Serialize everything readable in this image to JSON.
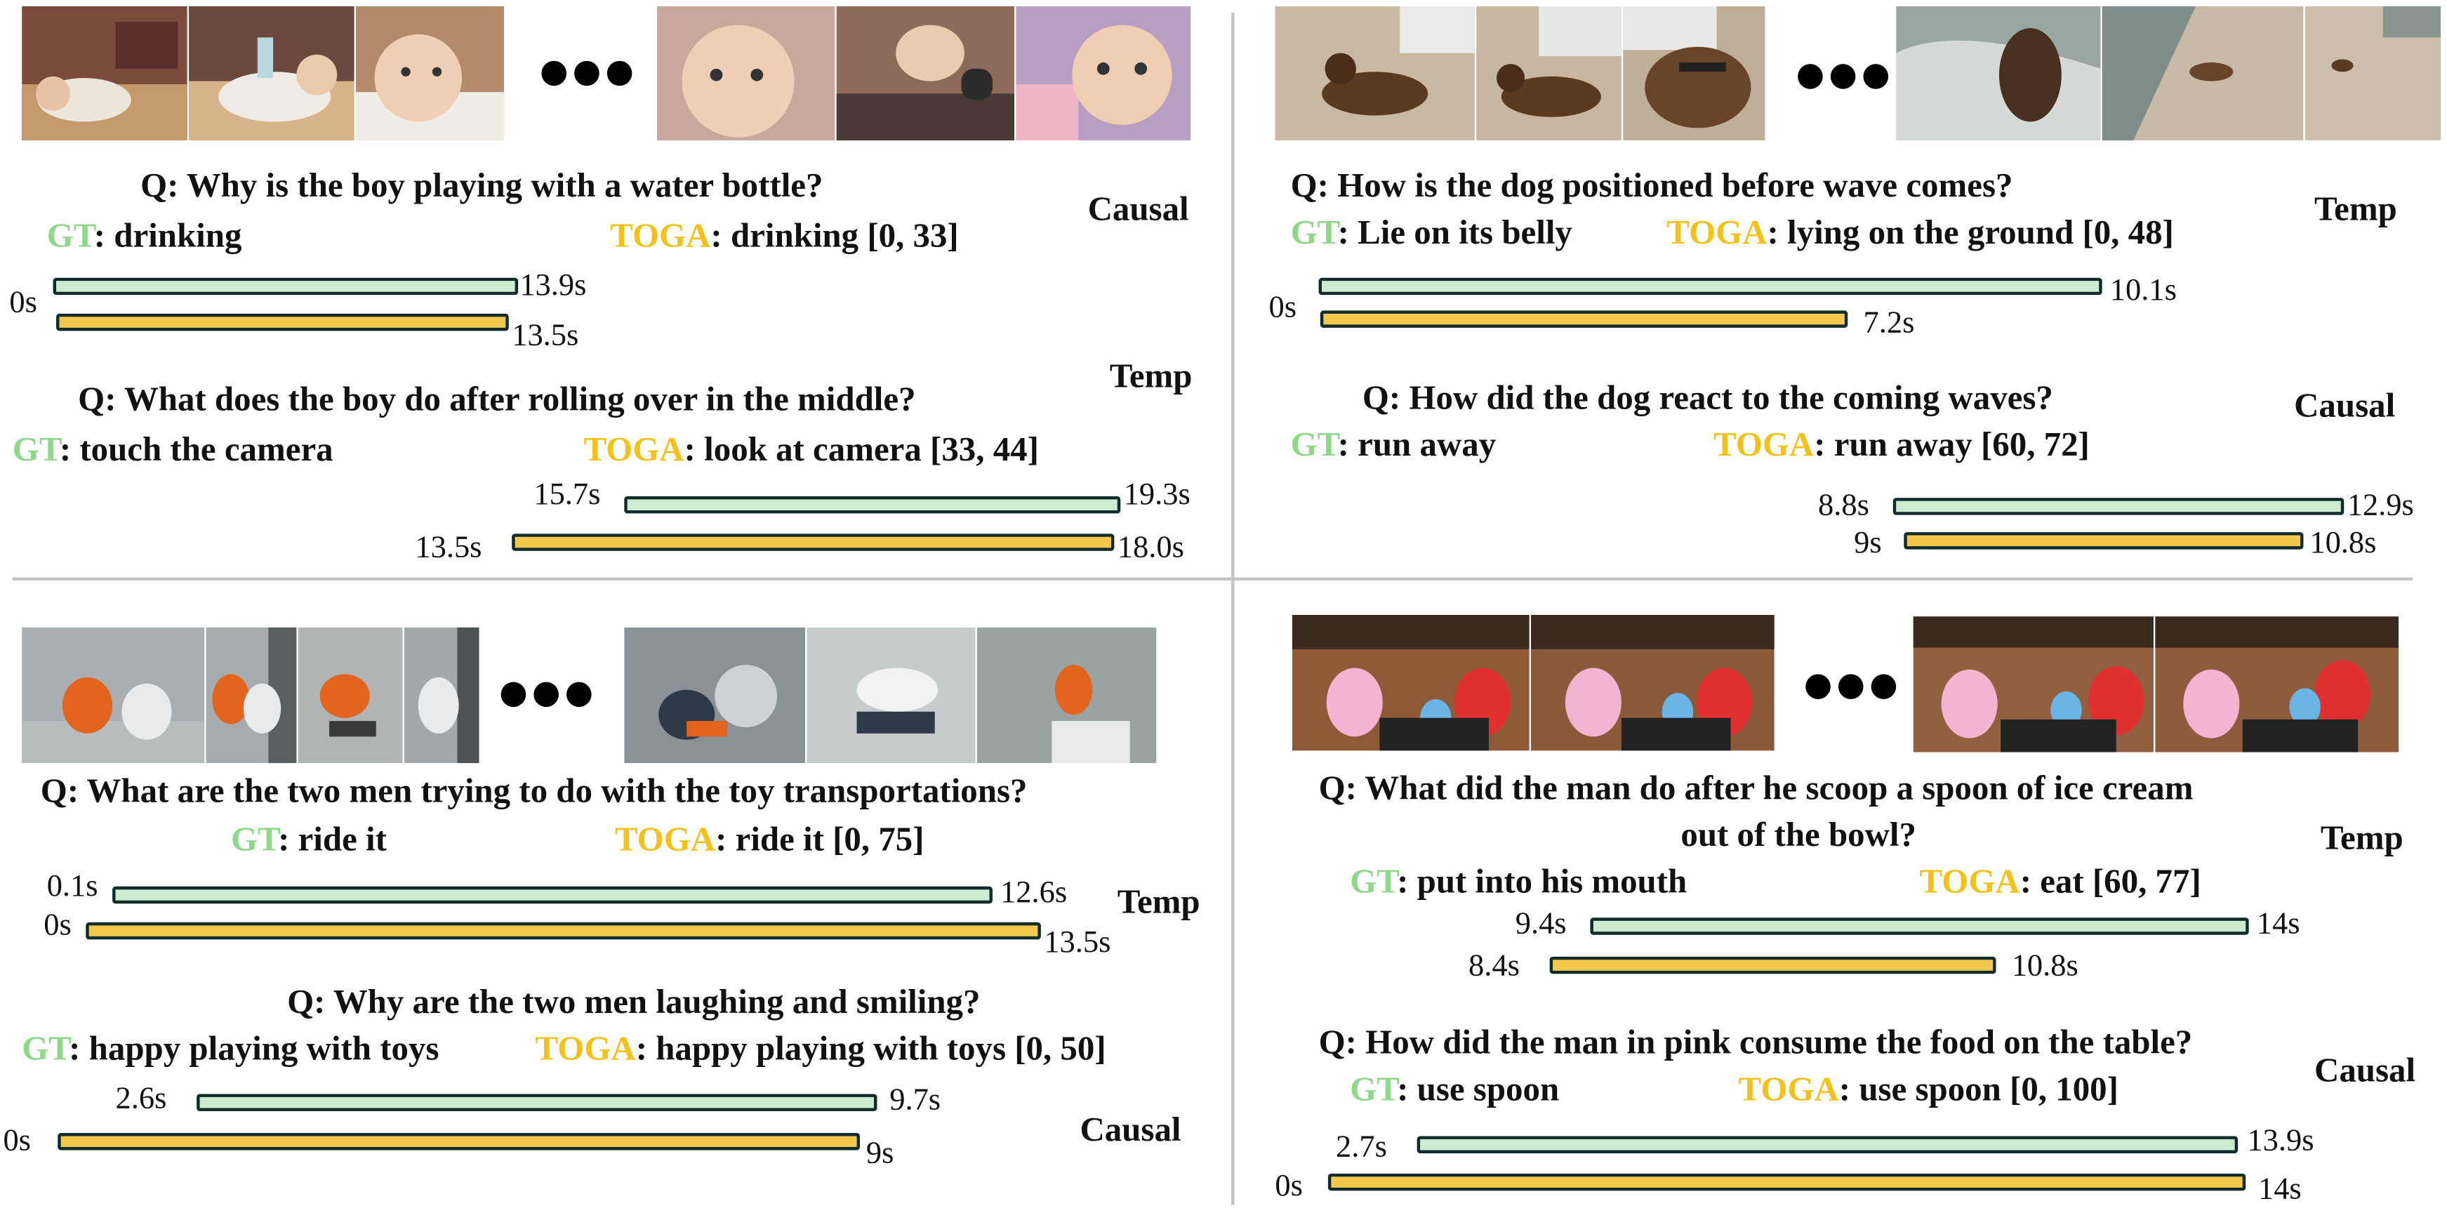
{
  "colors": {
    "gt": "#8fd88a",
    "toga": "#f3c11a",
    "gt_bar": "#cdebd0",
    "toga_bar": "#f2c94c",
    "bar_border": "#0f2b2b"
  },
  "labels": {
    "gt": "GT",
    "toga": "TOGA"
  },
  "panels": [
    {
      "qas": [
        {
          "question": "Q: Why is the boy playing with a water bottle?",
          "gt_answer": ": drinking",
          "toga_answer": ": drinking [0, 33]",
          "type": "Causal",
          "gt_start": "0s",
          "gt_end": "13.9s",
          "toga_start": "",
          "toga_end": "13.5s"
        },
        {
          "question": "Q: What does the boy do after rolling over in the middle?",
          "gt_answer": ": touch the camera",
          "toga_answer": ": look at camera [33, 44]",
          "type": "Temp",
          "gt_start": "15.7s",
          "gt_end": "19.3s",
          "toga_start": "13.5s",
          "toga_end": "18.0s"
        }
      ]
    },
    {
      "qas": [
        {
          "question": "Q: How is the dog positioned before wave comes?",
          "gt_answer": ": Lie on its belly",
          "toga_answer": ": lying on the ground [0, 48]",
          "type": "Temp",
          "gt_start": "0s",
          "gt_end": "10.1s",
          "toga_start": "",
          "toga_end": "7.2s"
        },
        {
          "question": "Q: How did the dog react to the coming waves?",
          "gt_answer": ": run away",
          "toga_answer": ": run away [60, 72]",
          "type": "Causal",
          "gt_start": "8.8s",
          "gt_end": "12.9s",
          "toga_start": "9s",
          "toga_end": "10.8s"
        }
      ]
    },
    {
      "qas": [
        {
          "question": "Q: What are the two men trying to do with the toy transportations?",
          "gt_answer": ": ride it",
          "toga_answer": ": ride it [0, 75]",
          "type": "Temp",
          "gt_start": "0.1s",
          "gt_end": "12.6s",
          "toga_start": "0s",
          "toga_end": "13.5s"
        },
        {
          "question": "Q: Why are the two men laughing and smiling?",
          "gt_answer": ": happy playing with toys",
          "toga_answer": ": happy playing with toys [0, 50]",
          "type": "Causal",
          "gt_start": "2.6s",
          "gt_end": "9.7s",
          "toga_start": "0s",
          "toga_end": "9s"
        }
      ]
    },
    {
      "qas": [
        {
          "question": "Q: What did the man do after he scoop a spoon of ice cream",
          "question_line2": "out of the bowl?",
          "gt_answer": ": put into his mouth",
          "toga_answer": ": eat [60, 77]",
          "type": "Temp",
          "gt_start": "9.4s",
          "gt_end": "14s",
          "toga_start": "8.4s",
          "toga_end": "10.8s"
        },
        {
          "question": "Q: How did the man in pink consume the food on the table?",
          "gt_answer": ": use spoon",
          "toga_answer": ": use spoon [0, 100]",
          "type": "Causal",
          "gt_start": "2.7s",
          "gt_end": "13.9s",
          "toga_start": "0s",
          "toga_end": "14s"
        }
      ]
    }
  ]
}
